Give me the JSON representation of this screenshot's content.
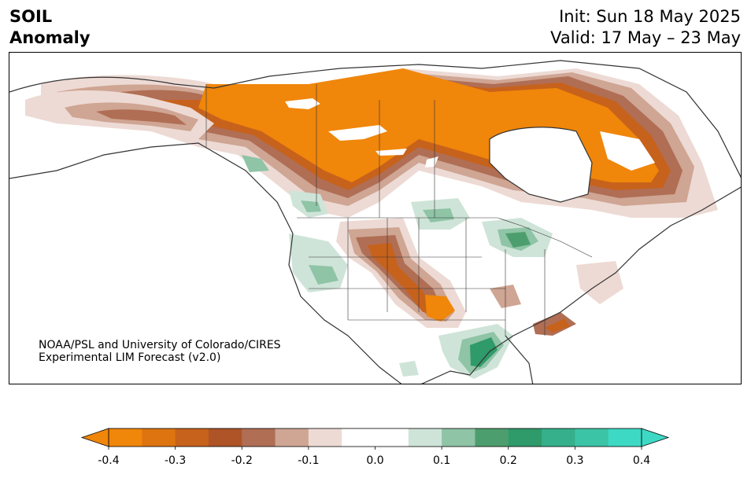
{
  "header": {
    "title_line1": "SOIL",
    "title_line2": "Anomaly",
    "init": "Init: Sun 18 May 2025",
    "valid": "Valid: 17 May – 23 May"
  },
  "credit": {
    "line1": "NOAA/PSL and University of Colorado/CIRES",
    "line2": "Experimental LIM Forecast (v2.0)"
  },
  "colorbar": {
    "colors": [
      "#f0860a",
      "#dd7410",
      "#c7621c",
      "#ae5427",
      "#b06e55",
      "#cfa593",
      "#eddad4",
      "#ffffff",
      "#ffffff",
      "#cfe4d8",
      "#8fc4a6",
      "#4d9e6e",
      "#2f9a6a",
      "#35b08b",
      "#3cc4a6",
      "#3dd9c4"
    ],
    "tick_labels": [
      "-0.4",
      "-0.3",
      "-0.2",
      "-0.1",
      "0.0",
      "0.1",
      "0.2",
      "0.3",
      "0.4"
    ],
    "min": -0.4,
    "max": 0.4
  },
  "legend_colors": {
    "dry_strong": "#f0860a",
    "dry_mid": "#c7621c",
    "dry_weak": "#b06e55",
    "dry_faint": "#eddad4",
    "wet_faint": "#cfe4d8",
    "wet_mid": "#8fc4a6",
    "wet_strong": "#2f9a6a"
  }
}
